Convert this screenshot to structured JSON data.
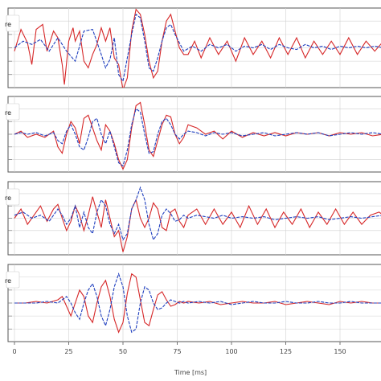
{
  "chart_data": {
    "type": "line",
    "xlabel": "Time [ms]",
    "xlim": [
      0,
      170
    ],
    "x_ticks": [
      0,
      25,
      50,
      75,
      100,
      125,
      150
    ],
    "x_tick_labels": [
      "0",
      "25",
      "50",
      "75",
      "100",
      "125",
      "150"
    ],
    "grid": true,
    "legend_placement": "top-left (clipped)",
    "series_colors": {
      "red": "#d62728",
      "blue": "#1f3fbf"
    },
    "panels": [
      {
        "legend_fragment": "re",
        "red": {
          "x": [
            0,
            3,
            6,
            8,
            10,
            13,
            15,
            18,
            20,
            22,
            23,
            25,
            27,
            28,
            30,
            32,
            34,
            36,
            38,
            40,
            42,
            44,
            46,
            48,
            50,
            52,
            54,
            56,
            58,
            60,
            62,
            64,
            66,
            68,
            70,
            72,
            74,
            76,
            78,
            80,
            83,
            86,
            90,
            94,
            98,
            102,
            106,
            110,
            114,
            118,
            122,
            126,
            130,
            134,
            138,
            142,
            146,
            150,
            154,
            158,
            162,
            166,
            170
          ],
          "y": [
            -0.1,
            0.55,
            0.15,
            -0.5,
            0.55,
            0.7,
            -0.1,
            0.5,
            0.3,
            -0.5,
            -1.1,
            0.2,
            0.6,
            0.2,
            0.5,
            -0.4,
            -0.6,
            -0.2,
            0.1,
            0.6,
            0.2,
            0.6,
            -0.3,
            -0.5,
            -1.25,
            -0.9,
            0.5,
            1.15,
            1.0,
            0.4,
            -0.4,
            -0.9,
            -0.7,
            0.2,
            0.8,
            1.0,
            0.5,
            0.0,
            -0.2,
            -0.2,
            0.2,
            -0.3,
            0.3,
            -0.2,
            0.2,
            -0.4,
            0.3,
            -0.2,
            0.2,
            -0.3,
            0.3,
            -0.2,
            0.3,
            -0.3,
            0.2,
            -0.2,
            0.2,
            -0.2,
            0.3,
            -0.2,
            0.2,
            -0.1,
            0.2
          ]
        },
        "blue": {
          "x": [
            0,
            4,
            8,
            12,
            16,
            20,
            24,
            28,
            32,
            36,
            40,
            42,
            44,
            46,
            48,
            50,
            52,
            54,
            56,
            58,
            60,
            62,
            64,
            66,
            68,
            70,
            72,
            74,
            78,
            82,
            86,
            90,
            94,
            98,
            102,
            106,
            110,
            114,
            118,
            122,
            126,
            130,
            134,
            138,
            142,
            146,
            150,
            154,
            158,
            162,
            166,
            170
          ],
          "y": [
            0.0,
            0.2,
            0.1,
            0.25,
            -0.1,
            0.3,
            -0.1,
            -0.4,
            0.5,
            0.55,
            -0.2,
            -0.6,
            -0.35,
            0.3,
            -0.8,
            -1.0,
            -0.3,
            0.4,
            1.0,
            0.9,
            0.2,
            -0.6,
            -0.7,
            -0.3,
            0.2,
            0.6,
            0.7,
            0.4,
            -0.1,
            0.05,
            -0.1,
            0.1,
            0.0,
            0.1,
            -0.1,
            0.05,
            0.0,
            0.1,
            -0.05,
            0.1,
            0.0,
            -0.05,
            0.1,
            0.0,
            0.05,
            -0.05,
            0.05,
            0.0,
            0.05,
            0.0,
            0.05,
            0.0
          ]
        }
      },
      {
        "legend_fragment": "re",
        "red": {
          "x": [
            0,
            3,
            6,
            10,
            14,
            18,
            20,
            22,
            24,
            26,
            28,
            30,
            32,
            34,
            36,
            38,
            40,
            42,
            44,
            46,
            48,
            50,
            52,
            54,
            56,
            58,
            60,
            62,
            64,
            66,
            68,
            70,
            72,
            74,
            76,
            78,
            80,
            84,
            88,
            92,
            96,
            100,
            105,
            110,
            115,
            120,
            125,
            130,
            135,
            140,
            145,
            150,
            155,
            160,
            165,
            170
          ],
          "y": [
            0.0,
            0.1,
            -0.1,
            0.0,
            -0.1,
            0.1,
            -0.4,
            -0.6,
            0.0,
            0.4,
            0.2,
            -0.3,
            0.5,
            0.6,
            0.2,
            -0.2,
            -0.5,
            0.3,
            0.1,
            -0.3,
            -0.8,
            -1.1,
            -0.8,
            0.2,
            0.9,
            1.0,
            0.3,
            -0.5,
            -0.7,
            -0.2,
            0.3,
            0.6,
            0.55,
            0.0,
            -0.3,
            -0.1,
            0.3,
            0.2,
            0.0,
            0.1,
            -0.15,
            0.1,
            -0.1,
            0.05,
            -0.05,
            0.05,
            -0.05,
            0.05,
            0.0,
            0.05,
            -0.05,
            0.05,
            0.0,
            0.05,
            -0.05,
            0.0
          ]
        },
        "blue": {
          "x": [
            0,
            3,
            6,
            10,
            14,
            18,
            20,
            22,
            24,
            26,
            28,
            30,
            32,
            34,
            36,
            38,
            40,
            42,
            44,
            46,
            48,
            50,
            52,
            54,
            56,
            58,
            60,
            62,
            64,
            66,
            68,
            70,
            72,
            74,
            76,
            78,
            80,
            84,
            88,
            92,
            96,
            100,
            105,
            110,
            115,
            120,
            125,
            130,
            135,
            140,
            145,
            150,
            155,
            160,
            165,
            170
          ],
          "y": [
            0.0,
            0.05,
            0.0,
            0.05,
            -0.05,
            0.05,
            -0.2,
            -0.3,
            0.1,
            0.3,
            0.0,
            -0.4,
            -0.5,
            -0.1,
            0.4,
            0.5,
            0.0,
            -0.3,
            0.1,
            -0.4,
            -0.9,
            -1.0,
            -0.5,
            0.3,
            0.8,
            0.7,
            0.0,
            -0.6,
            -0.55,
            0.0,
            0.4,
            0.5,
            0.3,
            0.0,
            -0.15,
            0.0,
            0.1,
            0.05,
            -0.05,
            0.05,
            0.0,
            0.05,
            -0.05,
            0.0,
            0.05,
            -0.05,
            0.0,
            0.05,
            0.0,
            0.05,
            -0.05,
            0.0,
            0.05,
            0.0,
            0.05,
            0.0
          ]
        }
      },
      {
        "legend_fragment": "re",
        "red": {
          "x": [
            0,
            3,
            6,
            9,
            12,
            15,
            18,
            20,
            22,
            24,
            26,
            28,
            30,
            32,
            34,
            36,
            38,
            40,
            42,
            44,
            46,
            48,
            50,
            52,
            54,
            56,
            58,
            60,
            62,
            64,
            66,
            68,
            70,
            72,
            74,
            76,
            78,
            80,
            84,
            88,
            92,
            96,
            100,
            104,
            108,
            112,
            116,
            120,
            124,
            128,
            132,
            136,
            140,
            144,
            148,
            152,
            156,
            160,
            164,
            168,
            170
          ],
          "y": [
            0.0,
            0.3,
            -0.2,
            0.1,
            0.4,
            -0.1,
            0.3,
            0.45,
            0.0,
            -0.4,
            -0.1,
            0.4,
            0.1,
            -0.4,
            0.1,
            0.7,
            0.2,
            -0.3,
            0.6,
            0.0,
            -0.6,
            -0.4,
            -1.1,
            -0.6,
            0.3,
            0.6,
            0.0,
            -0.3,
            0.0,
            0.5,
            0.3,
            -0.3,
            -0.4,
            0.2,
            0.3,
            -0.1,
            -0.3,
            0.1,
            0.3,
            -0.2,
            0.3,
            -0.2,
            0.2,
            -0.3,
            0.4,
            -0.2,
            0.3,
            -0.3,
            0.2,
            -0.2,
            0.3,
            -0.3,
            0.2,
            -0.2,
            0.3,
            -0.2,
            0.2,
            -0.2,
            0.1,
            0.2,
            0.1
          ]
        },
        "blue": {
          "x": [
            0,
            4,
            8,
            12,
            16,
            20,
            22,
            24,
            26,
            28,
            30,
            32,
            34,
            36,
            38,
            40,
            42,
            44,
            46,
            48,
            50,
            52,
            54,
            56,
            58,
            60,
            62,
            64,
            66,
            68,
            70,
            72,
            74,
            76,
            78,
            80,
            84,
            88,
            92,
            96,
            100,
            105,
            110,
            115,
            120,
            125,
            130,
            135,
            140,
            145,
            150,
            155,
            160,
            165,
            170
          ],
          "y": [
            0.1,
            0.2,
            0.0,
            0.1,
            -0.1,
            0.3,
            0.1,
            -0.2,
            0.0,
            0.4,
            -0.3,
            0.2,
            -0.3,
            -0.5,
            0.2,
            0.6,
            0.4,
            -0.2,
            -0.5,
            -0.2,
            -0.7,
            -0.5,
            0.3,
            0.6,
            1.0,
            0.6,
            -0.2,
            -0.7,
            -0.5,
            0.1,
            0.3,
            0.15,
            -0.1,
            -0.05,
            0.1,
            0.0,
            0.1,
            0.05,
            0.0,
            0.1,
            0.0,
            0.05,
            0.0,
            0.05,
            -0.05,
            0.0,
            0.05,
            0.0,
            0.05,
            -0.05,
            0.0,
            0.05,
            0.0,
            0.05,
            0.1
          ]
        }
      },
      {
        "legend_fragment": "re",
        "red": {
          "x": [
            0,
            5,
            10,
            15,
            20,
            22,
            24,
            26,
            28,
            30,
            32,
            34,
            36,
            38,
            40,
            42,
            44,
            46,
            48,
            50,
            52,
            54,
            56,
            58,
            60,
            62,
            64,
            66,
            68,
            70,
            72,
            74,
            76,
            78,
            80,
            85,
            90,
            95,
            100,
            105,
            110,
            115,
            120,
            125,
            130,
            135,
            140,
            145,
            150,
            155,
            160,
            165,
            170
          ],
          "y": [
            0.0,
            0.0,
            0.05,
            0.0,
            0.1,
            0.2,
            -0.1,
            -0.4,
            0.0,
            0.4,
            0.2,
            -0.4,
            -0.6,
            0.0,
            0.5,
            0.7,
            0.2,
            -0.5,
            -0.9,
            -0.6,
            0.3,
            0.9,
            0.8,
            0.1,
            -0.6,
            -0.7,
            -0.2,
            0.25,
            0.35,
            0.1,
            -0.1,
            -0.05,
            0.05,
            0.0,
            0.05,
            0.0,
            0.05,
            -0.05,
            0.0,
            0.05,
            0.0,
            0.0,
            0.05,
            -0.05,
            0.0,
            0.05,
            0.0,
            -0.05,
            0.05,
            0.0,
            0.05,
            0.0,
            0.0
          ]
        },
        "blue": {
          "x": [
            0,
            5,
            10,
            15,
            20,
            22,
            24,
            26,
            28,
            30,
            32,
            34,
            36,
            38,
            40,
            42,
            44,
            46,
            48,
            50,
            52,
            54,
            56,
            58,
            60,
            62,
            64,
            66,
            68,
            70,
            72,
            74,
            76,
            78,
            80,
            85,
            90,
            95,
            100,
            105,
            110,
            115,
            120,
            125,
            130,
            135,
            140,
            145,
            150,
            155,
            160,
            165,
            170
          ],
          "y": [
            0.0,
            0.0,
            0.0,
            0.05,
            0.0,
            0.1,
            0.2,
            0.0,
            -0.3,
            -0.5,
            0.0,
            0.4,
            0.6,
            0.2,
            -0.4,
            -0.7,
            -0.2,
            0.5,
            0.9,
            0.5,
            -0.4,
            -0.9,
            -0.8,
            0.0,
            0.5,
            0.4,
            0.0,
            -0.2,
            -0.15,
            0.0,
            0.1,
            0.05,
            0.0,
            0.05,
            0.0,
            0.05,
            0.0,
            0.05,
            -0.05,
            0.0,
            0.05,
            0.0,
            0.0,
            0.05,
            0.0,
            0.0,
            0.05,
            0.0,
            0.0,
            0.05,
            0.0,
            0.0,
            0.0
          ]
        }
      }
    ]
  }
}
